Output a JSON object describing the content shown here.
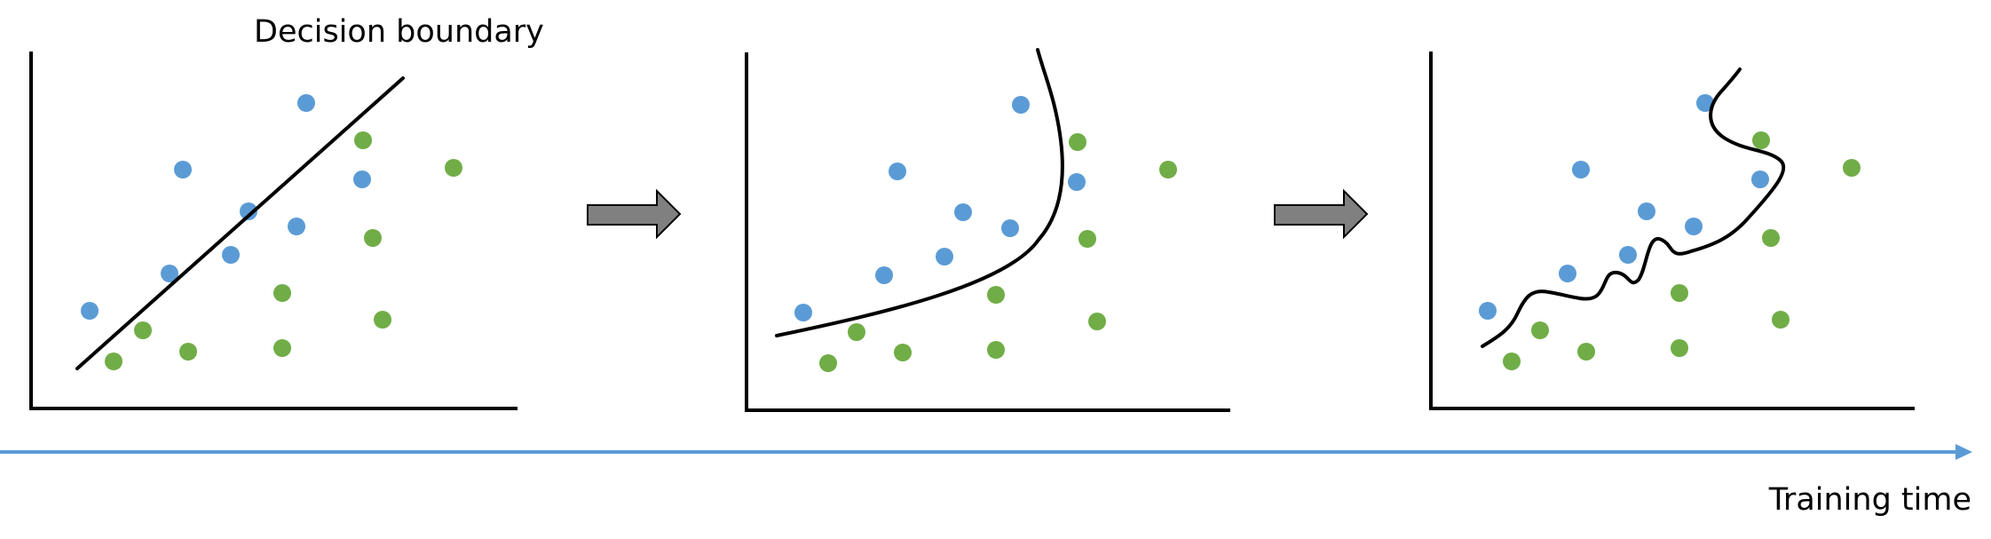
{
  "labels": {
    "decision_boundary": "Decision boundary",
    "training_time": "Training time"
  },
  "colors": {
    "class_a": "#5b9bd5",
    "class_b": "#70ad47",
    "boundary": "#000000",
    "axes": "#000000",
    "arrow_fill": "#808080",
    "timeline": "#5b9bd5"
  },
  "panels": [
    {
      "boundary_shape": "straight-line"
    },
    {
      "boundary_shape": "curve"
    },
    {
      "boundary_shape": "wiggly-curve"
    }
  ]
}
